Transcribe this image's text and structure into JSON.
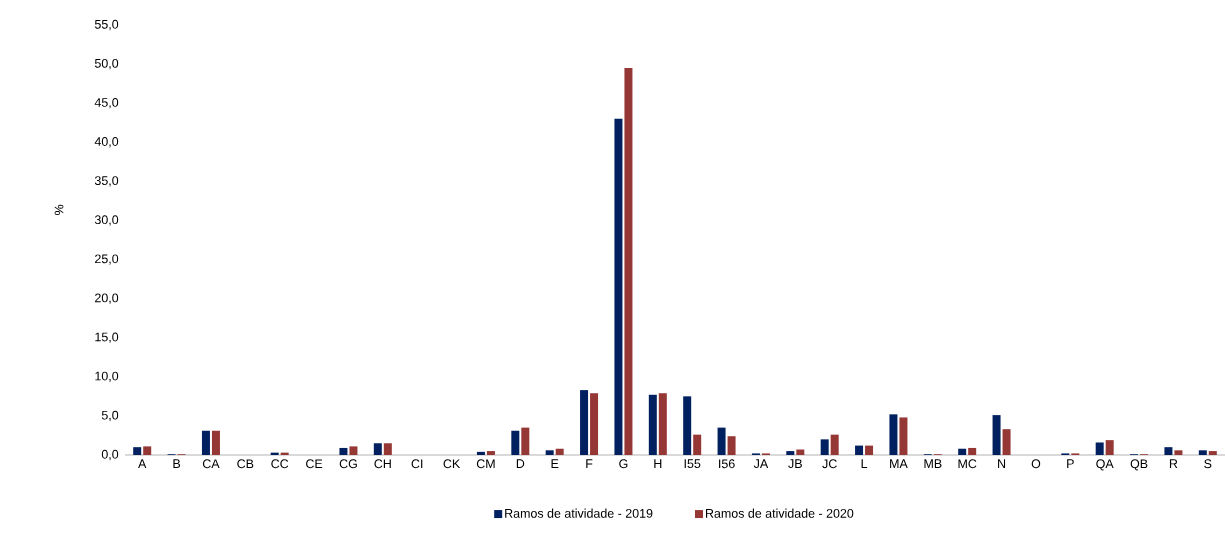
{
  "chart_data": {
    "type": "bar",
    "ylabel": "%",
    "categories": [
      "A",
      "B",
      "CA",
      "CB",
      "CC",
      "CE",
      "CG",
      "CH",
      "CI",
      "CK",
      "CM",
      "D",
      "E",
      "F",
      "G",
      "H",
      "I55",
      "I56",
      "JA",
      "JB",
      "JC",
      "L",
      "MA",
      "MB",
      "MC",
      "N",
      "O",
      "P",
      "QA",
      "QB",
      "R",
      "S"
    ],
    "series": [
      {
        "name": "Ramos de atividade - 2019",
        "color": "#002060",
        "values": [
          1.0,
          0.1,
          3.1,
          0.0,
          0.3,
          0.0,
          0.9,
          1.5,
          0.0,
          0.0,
          0.4,
          3.1,
          0.6,
          8.3,
          43.0,
          7.7,
          7.5,
          3.5,
          0.2,
          0.5,
          2.0,
          1.2,
          5.2,
          0.1,
          0.8,
          5.1,
          0.0,
          0.2,
          1.6,
          0.1,
          1.0,
          0.6
        ]
      },
      {
        "name": "Ramos de atividade - 2020",
        "color": "#953735",
        "values": [
          1.1,
          0.1,
          3.1,
          0.0,
          0.3,
          0.0,
          1.1,
          1.5,
          0.0,
          0.0,
          0.5,
          3.5,
          0.8,
          7.9,
          49.5,
          7.9,
          2.6,
          2.4,
          0.2,
          0.7,
          2.6,
          1.2,
          4.8,
          0.1,
          0.9,
          3.3,
          0.0,
          0.2,
          1.9,
          0.1,
          0.6,
          0.5
        ]
      }
    ],
    "ylim": [
      0,
      55
    ],
    "yticks": [
      {
        "value": 0,
        "label": "0,0"
      },
      {
        "value": 5,
        "label": "5,0"
      },
      {
        "value": 10,
        "label": "10,0"
      },
      {
        "value": 15,
        "label": "15,0"
      },
      {
        "value": 20,
        "label": "20,0"
      },
      {
        "value": 25,
        "label": "25,0"
      },
      {
        "value": 30,
        "label": "30,0"
      },
      {
        "value": 35,
        "label": "35,0"
      },
      {
        "value": 40,
        "label": "40,0"
      },
      {
        "value": 45,
        "label": "45,0"
      },
      {
        "value": 50,
        "label": "50,0"
      },
      {
        "value": 55,
        "label": "55,0"
      }
    ],
    "legend": "bottom"
  }
}
